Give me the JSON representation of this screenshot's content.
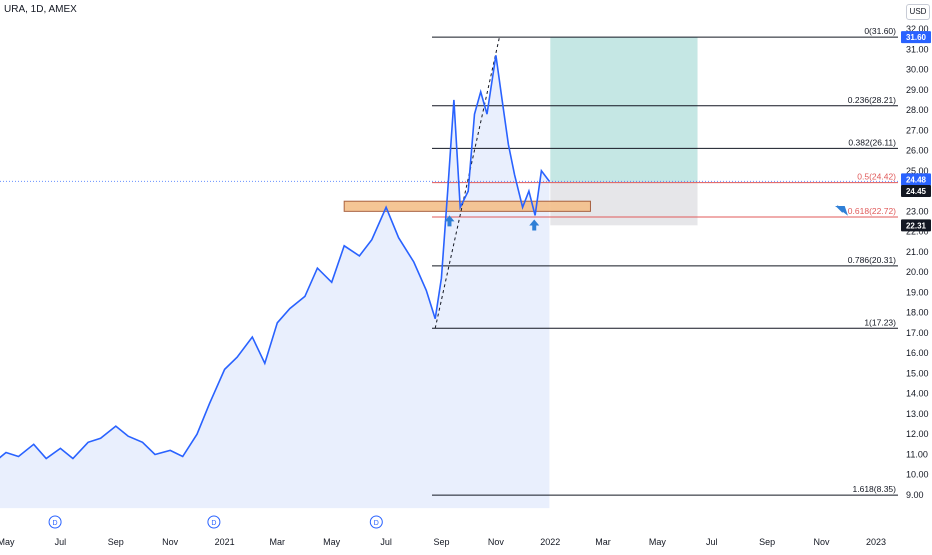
{
  "header": {
    "symbol_line": "URA, 1D, AMEX",
    "currency": "USD"
  },
  "colors": {
    "price_line": "#2962ff",
    "area_fill": "#dbe4fb",
    "fib_line": "#131722",
    "fib_mid": "#e05a5a",
    "profit_zone": "#b2dfdb",
    "loss_zone": "#e0e0e3",
    "zone_box": "#f5c08a",
    "arrow": "#2f7fd6",
    "tag_dark": "#131722",
    "tag_blue": "#2962ff"
  },
  "chart_data": {
    "type": "line",
    "title": "URA, 1D, AMEX",
    "ylim": [
      8.35,
      32.6
    ],
    "y_ticks": [
      9.0,
      10.0,
      11.0,
      12.0,
      13.0,
      14.0,
      15.0,
      16.0,
      17.0,
      18.0,
      19.0,
      20.0,
      21.0,
      22.0,
      23.0,
      24.0,
      25.0,
      26.0,
      27.0,
      28.0,
      29.0,
      30.0,
      31.0,
      32.0
    ],
    "y_tick_labels": [
      "9.00",
      "10.00",
      "11.00",
      "12.00",
      "13.00",
      "14.00",
      "15.00",
      "16.00",
      "17.00",
      "18.00",
      "19.00",
      "20.00",
      "21.00",
      "22.00",
      "23.00",
      "24.00",
      "25.00",
      "26.00",
      "27.00",
      "28.00",
      "29.00",
      "30.00",
      "31.00",
      "32.00"
    ],
    "x_tick_labels": [
      "May",
      "Jul",
      "Sep",
      "Nov",
      "2021",
      "Mar",
      "May",
      "Jul",
      "Sep",
      "Nov",
      "2022",
      "Mar",
      "May",
      "Jul",
      "Sep",
      "Nov",
      "2023"
    ],
    "x_tick_dates": [
      "2020-05-01",
      "2020-07-01",
      "2020-09-01",
      "2020-11-01",
      "2021-01-01",
      "2021-03-01",
      "2021-05-01",
      "2021-07-01",
      "2021-09-01",
      "2021-11-01",
      "2022-01-01",
      "2022-03-01",
      "2022-05-01",
      "2022-07-01",
      "2022-09-01",
      "2022-11-01",
      "2023-01-01"
    ],
    "series": [
      {
        "x": [
          "2020-04-20",
          "2020-05-01",
          "2020-05-15",
          "2020-06-01",
          "2020-06-15",
          "2020-07-01",
          "2020-07-15",
          "2020-08-01",
          "2020-08-15",
          "2020-09-01",
          "2020-09-15",
          "2020-10-01",
          "2020-10-15",
          "2020-11-01",
          "2020-11-15",
          "2020-12-01",
          "2020-12-15",
          "2021-01-01",
          "2021-01-15",
          "2021-02-01",
          "2021-02-15",
          "2021-03-01",
          "2021-03-15",
          "2021-04-01",
          "2021-04-15",
          "2021-05-01",
          "2021-05-15",
          "2021-06-01",
          "2021-06-15",
          "2021-07-01",
          "2021-07-15",
          "2021-08-01",
          "2021-08-15",
          "2021-08-25",
          "2021-09-01",
          "2021-09-08",
          "2021-09-15",
          "2021-09-22",
          "2021-10-01",
          "2021-10-08",
          "2021-10-15",
          "2021-10-22",
          "2021-11-01",
          "2021-11-08",
          "2021-11-15",
          "2021-11-22",
          "2021-12-01",
          "2021-12-08",
          "2021-12-15",
          "2021-12-22",
          "2021-12-31"
        ],
        "values": [
          10.7,
          11.1,
          10.9,
          11.5,
          10.8,
          11.3,
          10.8,
          11.6,
          11.8,
          12.4,
          11.9,
          11.6,
          11.0,
          11.2,
          10.9,
          12.0,
          13.5,
          15.2,
          15.8,
          16.8,
          15.5,
          17.5,
          18.2,
          18.8,
          20.2,
          19.5,
          21.3,
          20.8,
          21.6,
          23.2,
          21.7,
          20.5,
          19.1,
          17.7,
          19.7,
          24.0,
          28.5,
          23.2,
          24.0,
          27.8,
          28.9,
          27.8,
          30.7,
          28.5,
          26.3,
          24.8,
          23.2,
          24.0,
          22.8,
          25.0,
          24.48
        ]
      }
    ],
    "last_price_tags": [
      "24.48",
      "24.45"
    ],
    "fib_levels": [
      {
        "label": "0(31.60)",
        "value": 31.6,
        "tag": "31.60"
      },
      {
        "label": "0.236(28.21)",
        "value": 28.21
      },
      {
        "label": "0.382(26.11)",
        "value": 26.11
      },
      {
        "label": "0.5(24.42)",
        "value": 24.42
      },
      {
        "label": "0.618(22.72)",
        "value": 22.72
      },
      {
        "label": "0.786(20.31)",
        "value": 20.31
      },
      {
        "label": "1(17.23)",
        "value": 17.23
      },
      {
        "label": "1.618(8.35)",
        "value": 8.35
      }
    ],
    "stop_tag": "22.31",
    "position": {
      "entry": 24.45,
      "target": 31.6,
      "stop": 22.31,
      "start": "2022-01-01",
      "end": "2022-06-15"
    },
    "zone": {
      "low": 23.0,
      "high": 23.5,
      "start": "2021-05-15",
      "end": "2022-02-15"
    },
    "trend_line": {
      "from_date": "2021-08-25",
      "from": 17.23,
      "to_date": "2021-11-05",
      "to": 31.6
    },
    "dividend_dates": [
      "2020-06-25",
      "2020-12-20",
      "2021-06-20"
    ],
    "dividend_marker": "D"
  }
}
